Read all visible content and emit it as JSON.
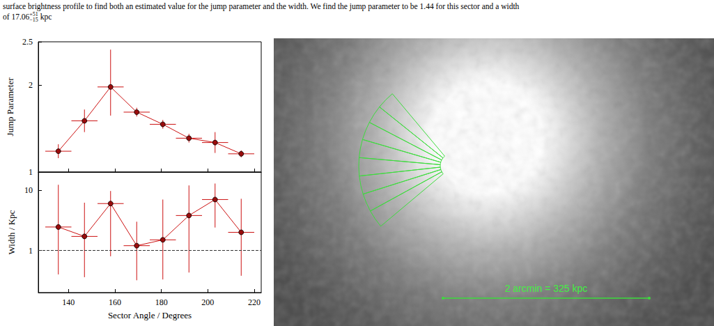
{
  "caption": {
    "text": "surface brightness profile to find both an estimated value for the jump parameter and the width. We find the jump parameter to be 1.44 for this sector and a width",
    "value": "of 17.06",
    "upper": "+51",
    "lower": "−15",
    "unit": "kpc"
  },
  "chart_data": [
    {
      "type": "line",
      "ylabel": "Jump Parameter",
      "x": [
        135.625,
        146.875,
        158.125,
        169.375,
        180.625,
        191.875,
        203.125,
        214.375
      ],
      "xerr": [
        5.625,
        5.625,
        5.625,
        5.625,
        5.625,
        5.625,
        5.625,
        5.625
      ],
      "values": [
        1.24,
        1.59,
        1.98,
        1.69,
        1.55,
        1.39,
        1.34,
        1.21
      ],
      "y_low": [
        1.16,
        1.46,
        1.65,
        1.64,
        1.5,
        1.34,
        1.22,
        1.17
      ],
      "y_high": [
        1.32,
        1.72,
        2.41,
        1.74,
        1.6,
        1.44,
        1.46,
        1.25
      ],
      "xlim": [
        127,
        223
      ],
      "xticks": [
        140,
        160,
        180,
        200,
        220
      ],
      "ylim": [
        1,
        2.5
      ],
      "yticks": [
        1,
        2,
        2.5
      ],
      "color": "#cc1111",
      "marker": "circle",
      "tick_labels": "y"
    },
    {
      "type": "line",
      "ylabel": "Width / Kpc",
      "xlabel": "Sector Angle / Degrees",
      "x": [
        135.625,
        146.875,
        158.125,
        169.375,
        180.625,
        191.875,
        203.125,
        214.375
      ],
      "xerr": [
        5.625,
        5.625,
        5.625,
        5.625,
        5.625,
        5.625,
        5.625,
        5.625
      ],
      "values": [
        2.45,
        1.71,
        6.0,
        1.2,
        1.5,
        3.8,
        7.0,
        2.0
      ],
      "y_low": [
        0.4,
        0.36,
        0.8,
        0.32,
        0.33,
        0.43,
        2.4,
        0.38
      ],
      "y_high": [
        12.3,
        6.2,
        9.7,
        3.0,
        7.0,
        12.0,
        12.9,
        7.2
      ],
      "xlim": [
        127,
        223
      ],
      "xticks": [
        140,
        160,
        180,
        200,
        220
      ],
      "ylim": [
        0.2,
        20
      ],
      "yticks": [
        1,
        10
      ],
      "log": "y",
      "reference_line": 1,
      "color": "#cc1111",
      "marker": "circle"
    }
  ],
  "image": {
    "scale_bar": "2 arcmin = 325 kpc"
  }
}
